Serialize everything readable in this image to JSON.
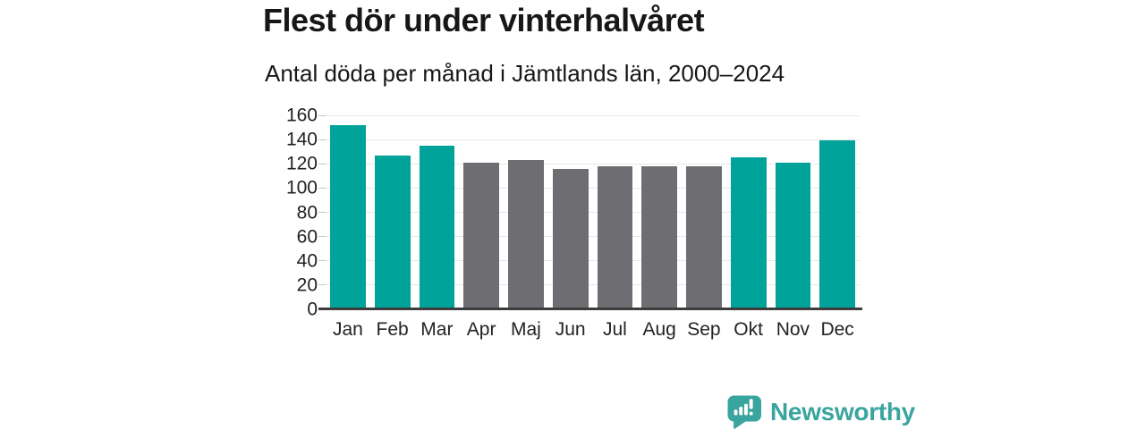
{
  "header": {
    "title": "Flest dör under vinterhalvåret",
    "subtitle": "Antal döda per månad i Jämtlands län, 2000–2024"
  },
  "chart_data": {
    "type": "bar",
    "title": "Flest dör under vinterhalvåret",
    "subtitle": "Antal döda per månad i Jämtlands län, 2000–2024",
    "categories": [
      "Jan",
      "Feb",
      "Mar",
      "Apr",
      "Maj",
      "Jun",
      "Jul",
      "Aug",
      "Sep",
      "Okt",
      "Nov",
      "Dec"
    ],
    "values": [
      152,
      127,
      135,
      121,
      123,
      116,
      118,
      118,
      118,
      125,
      121,
      139
    ],
    "bar_seasons": [
      "winter",
      "winter",
      "winter",
      "summer",
      "summer",
      "summer",
      "summer",
      "summer",
      "summer",
      "winter",
      "winter",
      "winter"
    ],
    "colors": {
      "winter_bar": "#00a39a",
      "summer_bar": "#6e6d72",
      "gridline": "#e7e7e7",
      "axis_line": "#3d3d3d",
      "label_text": "#222222"
    },
    "xlabel": "",
    "ylabel": "",
    "ylim": [
      0,
      160
    ],
    "yticks": [
      0,
      20,
      40,
      60,
      80,
      100,
      120,
      140,
      160
    ],
    "grid": true,
    "legend_position": "none"
  },
  "footer": {
    "brand_name": "Newsworthy",
    "brand_color": "#3aa49e",
    "logo_icon": "bar-chart-speech-bubble-icon"
  }
}
